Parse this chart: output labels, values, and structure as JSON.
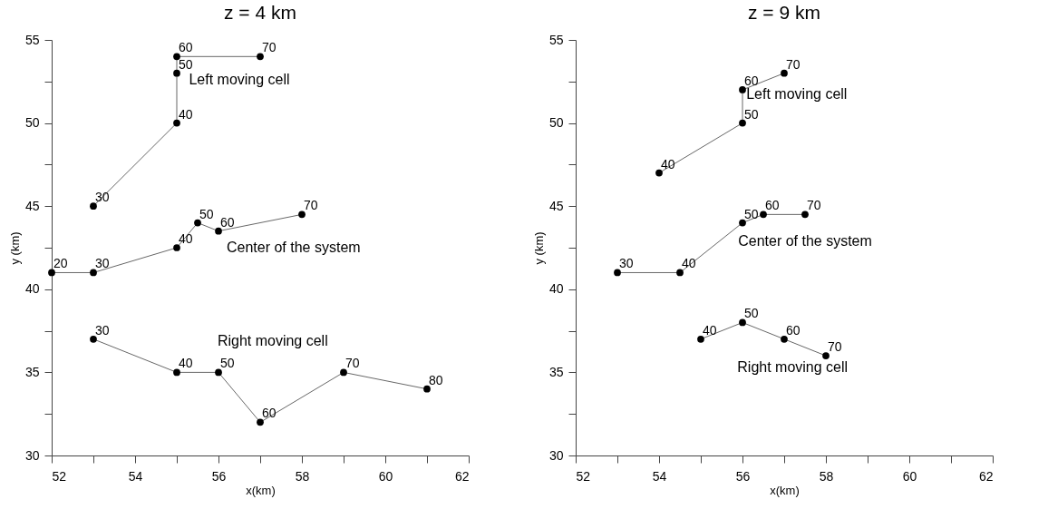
{
  "chart_data": [
    {
      "type": "line",
      "title": "z = 4 km",
      "xlabel": "x(km)",
      "ylabel": "y (km)",
      "marker": "circle",
      "line_style": "solid",
      "xlim": [
        52,
        62
      ],
      "ylim": [
        30,
        55
      ],
      "xticks": [
        52,
        {
          "value": 53,
          "label": null
        },
        54,
        {
          "value": 55,
          "label": null
        },
        56,
        {
          "value": 57,
          "label": null
        },
        58,
        {
          "value": 59,
          "label": null
        },
        60,
        {
          "value": 61,
          "label": null
        },
        62
      ],
      "yticks": [
        30,
        {
          "value": 32.5,
          "label": null
        },
        35,
        {
          "value": 37.5,
          "label": null
        },
        40,
        {
          "value": 42.5,
          "label": null
        },
        45,
        {
          "value": 47.5,
          "label": null
        },
        50,
        {
          "value": 52.5,
          "label": null
        },
        55
      ],
      "series": [
        {
          "color": "#000000",
          "x": [
            53,
            55,
            55,
            55,
            57
          ],
          "values": [
            45,
            50,
            53,
            54,
            54
          ]
        },
        {
          "color": "#000000",
          "x": [
            52,
            53,
            55,
            55.5,
            56,
            58
          ],
          "values": [
            41,
            41,
            42.5,
            44,
            43.5,
            44.5
          ]
        },
        {
          "color": "#000000",
          "x": [
            53,
            55,
            56,
            57,
            59,
            61
          ],
          "values": [
            37,
            35,
            35,
            32,
            35,
            34
          ]
        }
      ],
      "annotations": [
        "Left moving cell",
        "Center of the system",
        "Right moving cell",
        {
          "text": "30",
          "x": 53,
          "y": 45
        },
        {
          "text": "40",
          "x": 55,
          "y": 50
        },
        {
          "text": "50",
          "x": 55,
          "y": 53
        },
        {
          "text": "60",
          "x": 55,
          "y": 54
        },
        {
          "text": "70",
          "x": 57,
          "y": 54
        },
        {
          "text": "20",
          "x": 52,
          "y": 41
        },
        {
          "text": "30",
          "x": 53,
          "y": 41
        },
        {
          "text": "40",
          "x": 55,
          "y": 42.5
        },
        {
          "text": "50",
          "x": 55.5,
          "y": 44
        },
        {
          "text": "60",
          "x": 56,
          "y": 43.5
        },
        {
          "text": "70",
          "x": 58,
          "y": 44.5
        },
        {
          "text": "30",
          "x": 53,
          "y": 37
        },
        {
          "text": "40",
          "x": 55,
          "y": 35
        },
        {
          "text": "50",
          "x": 56,
          "y": 35
        },
        {
          "text": "60",
          "x": 57,
          "y": 32
        },
        {
          "text": "70",
          "x": 59,
          "y": 35
        },
        {
          "text": "80",
          "x": 61,
          "y": 34
        }
      ]
    },
    {
      "type": "line",
      "title": "z = 9 km",
      "xlabel": "x(km)",
      "ylabel": "y (km)",
      "marker": "circle",
      "line_style": "solid",
      "xlim": [
        52,
        62
      ],
      "ylim": [
        30,
        55
      ],
      "xticks": [
        52,
        {
          "value": 53,
          "label": null
        },
        54,
        {
          "value": 55,
          "label": null
        },
        56,
        {
          "value": 57,
          "label": null
        },
        58,
        {
          "value": 59,
          "label": null
        },
        60,
        {
          "value": 61,
          "label": null
        },
        62
      ],
      "yticks": [
        30,
        {
          "value": 32.5,
          "label": null
        },
        35,
        {
          "value": 37.5,
          "label": null
        },
        40,
        {
          "value": 42.5,
          "label": null
        },
        45,
        {
          "value": 47.5,
          "label": null
        },
        50,
        {
          "value": 52.5,
          "label": null
        },
        55
      ],
      "series": [
        {
          "color": "#000000",
          "x": [
            54,
            56,
            56,
            57
          ],
          "values": [
            47,
            50,
            52,
            53
          ]
        },
        {
          "color": "#000000",
          "x": [
            53,
            54.5,
            56,
            56.5,
            57.5
          ],
          "values": [
            41,
            41,
            44,
            44.5,
            44.5
          ]
        },
        {
          "color": "#000000",
          "x": [
            55,
            56,
            57,
            58
          ],
          "values": [
            37,
            38,
            37,
            36
          ]
        }
      ],
      "annotations": [
        "Left moving cell",
        "Center of the system",
        "Right moving cell",
        {
          "text": "40",
          "x": 54,
          "y": 47
        },
        {
          "text": "50",
          "x": 56,
          "y": 50
        },
        {
          "text": "60",
          "x": 56,
          "y": 52
        },
        {
          "text": "70",
          "x": 57,
          "y": 53
        },
        {
          "text": "30",
          "x": 53,
          "y": 41
        },
        {
          "text": "40",
          "x": 54.5,
          "y": 41
        },
        {
          "text": "50",
          "x": 56,
          "y": 44
        },
        {
          "text": "60",
          "x": 56.5,
          "y": 44.5
        },
        {
          "text": "70",
          "x": 57.5,
          "y": 44.5
        },
        {
          "text": "40",
          "x": 55,
          "y": 37
        },
        {
          "text": "50",
          "x": 56,
          "y": 38
        },
        {
          "text": "60",
          "x": 57,
          "y": 37
        },
        {
          "text": "70",
          "x": 58,
          "y": 36
        }
      ]
    }
  ]
}
